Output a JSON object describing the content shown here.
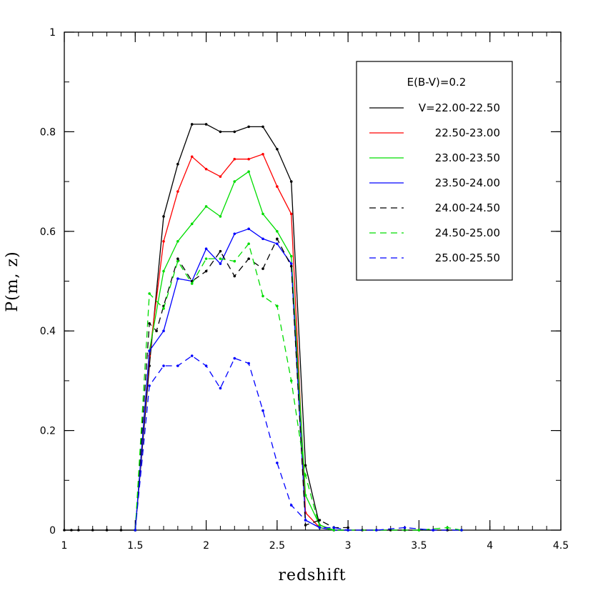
{
  "chart_data": {
    "type": "line",
    "xlabel": "redshift",
    "ylabel": "P(m, z)",
    "xlim": [
      1,
      4.5
    ],
    "ylim": [
      0,
      1
    ],
    "x_ticks": [
      "1",
      "1.5",
      "2",
      "2.5",
      "3",
      "3.5",
      "4",
      "4.5"
    ],
    "y_ticks": [
      "0",
      "0.2",
      "0.4",
      "0.6",
      "0.8",
      "1"
    ],
    "legend": {
      "title": "E(B-V)=0.2",
      "placement": "top-right"
    },
    "series": [
      {
        "name": "V=22.00-22.50",
        "color": "#000000",
        "dash": "solid",
        "points": [
          [
            1.0,
            0
          ],
          [
            1.05,
            0
          ],
          [
            1.1,
            0
          ],
          [
            1.2,
            0
          ],
          [
            1.3,
            0
          ],
          [
            1.4,
            0
          ],
          [
            1.5,
            0
          ],
          [
            1.6,
            0.33
          ],
          [
            1.7,
            0.63
          ],
          [
            1.8,
            0.735
          ],
          [
            1.9,
            0.815
          ],
          [
            2.0,
            0.815
          ],
          [
            2.1,
            0.8
          ],
          [
            2.2,
            0.8
          ],
          [
            2.3,
            0.81
          ],
          [
            2.4,
            0.81
          ],
          [
            2.5,
            0.765
          ],
          [
            2.6,
            0.7
          ],
          [
            2.7,
            0.13
          ],
          [
            2.8,
            0.01
          ],
          [
            2.9,
            0
          ],
          [
            3.0,
            0
          ],
          [
            3.1,
            0
          ],
          [
            3.2,
            0
          ],
          [
            3.3,
            0
          ],
          [
            3.4,
            0
          ],
          [
            3.5,
            0
          ],
          [
            3.6,
            0
          ],
          [
            3.7,
            0
          ],
          [
            3.8,
            0
          ]
        ]
      },
      {
        "name": "22.50-23.00",
        "color": "#ff0000",
        "dash": "solid",
        "points": [
          [
            1.5,
            0
          ],
          [
            1.6,
            0.35
          ],
          [
            1.7,
            0.58
          ],
          [
            1.8,
            0.68
          ],
          [
            1.9,
            0.75
          ],
          [
            2.0,
            0.725
          ],
          [
            2.1,
            0.71
          ],
          [
            2.2,
            0.745
          ],
          [
            2.3,
            0.745
          ],
          [
            2.4,
            0.755
          ],
          [
            2.5,
            0.69
          ],
          [
            2.6,
            0.635
          ],
          [
            2.7,
            0.035
          ],
          [
            2.8,
            0.005
          ],
          [
            2.9,
            0
          ],
          [
            3.0,
            0
          ]
        ]
      },
      {
        "name": "23.00-23.50",
        "color": "#00dd00",
        "dash": "solid",
        "points": [
          [
            1.5,
            0
          ],
          [
            1.6,
            0.36
          ],
          [
            1.7,
            0.52
          ],
          [
            1.8,
            0.58
          ],
          [
            1.9,
            0.615
          ],
          [
            2.0,
            0.65
          ],
          [
            2.1,
            0.63
          ],
          [
            2.2,
            0.7
          ],
          [
            2.3,
            0.72
          ],
          [
            2.4,
            0.635
          ],
          [
            2.5,
            0.6
          ],
          [
            2.6,
            0.55
          ],
          [
            2.7,
            0.07
          ],
          [
            2.8,
            0.01
          ],
          [
            2.9,
            0
          ],
          [
            3.0,
            0
          ]
        ]
      },
      {
        "name": "23.50-24.00",
        "color": "#0000ff",
        "dash": "solid",
        "points": [
          [
            1.5,
            0
          ],
          [
            1.6,
            0.36
          ],
          [
            1.7,
            0.4
          ],
          [
            1.8,
            0.505
          ],
          [
            1.9,
            0.5
          ],
          [
            2.0,
            0.565
          ],
          [
            2.1,
            0.535
          ],
          [
            2.2,
            0.595
          ],
          [
            2.3,
            0.605
          ],
          [
            2.4,
            0.585
          ],
          [
            2.5,
            0.575
          ],
          [
            2.6,
            0.535
          ],
          [
            2.7,
            0.02
          ],
          [
            2.8,
            0.005
          ],
          [
            2.9,
            0
          ],
          [
            3.0,
            0
          ]
        ]
      },
      {
        "name": "24.00-24.50",
        "color": "#000000",
        "dash": "dashed",
        "points": [
          [
            1.5,
            0
          ],
          [
            1.6,
            0.415
          ],
          [
            1.65,
            0.4
          ],
          [
            1.7,
            0.45
          ],
          [
            1.8,
            0.545
          ],
          [
            1.9,
            0.5
          ],
          [
            2.0,
            0.52
          ],
          [
            2.1,
            0.56
          ],
          [
            2.2,
            0.51
          ],
          [
            2.3,
            0.545
          ],
          [
            2.4,
            0.525
          ],
          [
            2.5,
            0.585
          ],
          [
            2.6,
            0.53
          ],
          [
            2.7,
            0.01
          ],
          [
            2.8,
            0.02
          ],
          [
            2.9,
            0.005
          ],
          [
            3.0,
            0.005
          ]
        ]
      },
      {
        "name": "24.50-25.00",
        "color": "#00dd00",
        "dash": "dashed",
        "points": [
          [
            1.5,
            0
          ],
          [
            1.6,
            0.475
          ],
          [
            1.7,
            0.445
          ],
          [
            1.8,
            0.54
          ],
          [
            1.9,
            0.495
          ],
          [
            2.0,
            0.545
          ],
          [
            2.1,
            0.545
          ],
          [
            2.2,
            0.54
          ],
          [
            2.3,
            0.575
          ],
          [
            2.4,
            0.47
          ],
          [
            2.5,
            0.45
          ],
          [
            2.6,
            0.3
          ],
          [
            2.7,
            0.11
          ],
          [
            2.8,
            0.005
          ],
          [
            2.9,
            0
          ],
          [
            3.0,
            0
          ],
          [
            3.5,
            0
          ],
          [
            3.7,
            0.005
          ],
          [
            3.8,
            0
          ]
        ]
      },
      {
        "name": "25.00-25.50",
        "color": "#0000ff",
        "dash": "dashed",
        "points": [
          [
            1.5,
            0
          ],
          [
            1.6,
            0.29
          ],
          [
            1.7,
            0.33
          ],
          [
            1.8,
            0.33
          ],
          [
            1.9,
            0.35
          ],
          [
            2.0,
            0.33
          ],
          [
            2.1,
            0.285
          ],
          [
            2.2,
            0.345
          ],
          [
            2.3,
            0.335
          ],
          [
            2.4,
            0.24
          ],
          [
            2.5,
            0.135
          ],
          [
            2.6,
            0.05
          ],
          [
            2.7,
            0.02
          ],
          [
            2.8,
            0.005
          ],
          [
            2.9,
            0.005
          ],
          [
            3.0,
            0
          ],
          [
            3.2,
            0
          ],
          [
            3.4,
            0.005
          ],
          [
            3.6,
            0
          ],
          [
            3.8,
            0
          ]
        ]
      }
    ]
  }
}
